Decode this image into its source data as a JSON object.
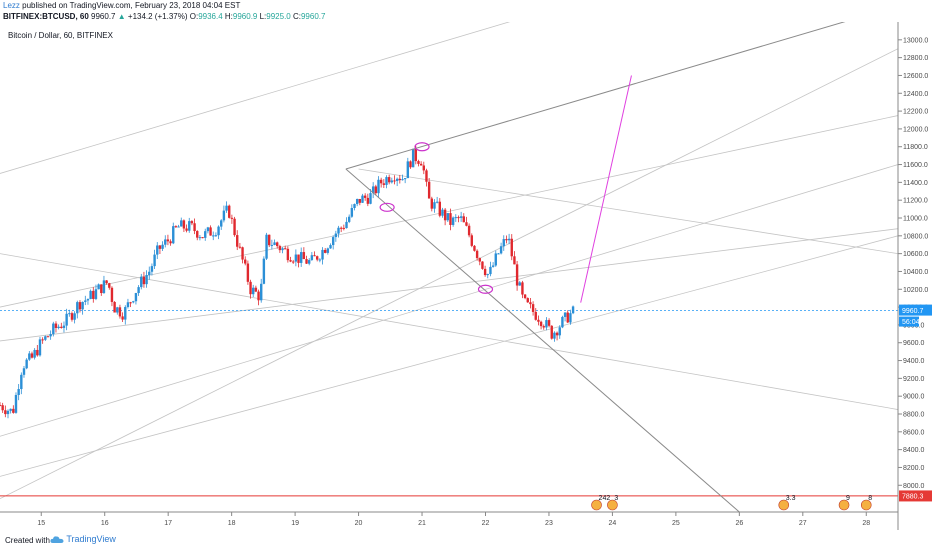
{
  "header": {
    "author": "Lezz",
    "published": "published on TradingView.com, February 23, 2018 04:04 EST",
    "symbol": "BITFINEX:BTCUSD, 60",
    "price": "9960.7",
    "arrow": "▲",
    "change": "+134.2 (+1.37%)",
    "open_label": "O:",
    "open": "9936.4",
    "high_label": "H:",
    "high": "9960.9",
    "low_label": "L:",
    "low": "9925.0",
    "close_label": "C:",
    "close": "9960.7"
  },
  "footer": {
    "created_with": "Created with",
    "logo_text": "TradingView",
    "logo_icon": "tradingview-cloud-icon"
  },
  "chart_data": {
    "type": "candlestick",
    "title": "Bitcoin / Dollar, 60, BITFINEX",
    "xlabel": "",
    "ylabel": "",
    "x_ticks": [
      "15",
      "16",
      "17",
      "18",
      "19",
      "20",
      "21",
      "22",
      "23",
      "24",
      "25",
      "26",
      "27",
      "28"
    ],
    "x_tick_values": [
      15,
      16,
      17,
      18,
      19,
      20,
      21,
      22,
      23,
      24,
      25,
      26,
      27,
      28
    ],
    "xlim": [
      14.35,
      28.5
    ],
    "ylim": [
      7700,
      13200
    ],
    "y_ticks": [
      "13000.0",
      "12800.0",
      "12600.0",
      "12400.0",
      "12200.0",
      "12000.0",
      "11800.0",
      "11600.0",
      "11400.0",
      "11200.0",
      "11000.0",
      "10800.0",
      "10600.0",
      "10400.0",
      "10200.0",
      "10000.0",
      "9800.0",
      "9600.0",
      "9400.0",
      "9200.0",
      "9000.0",
      "8800.0",
      "8600.0",
      "8400.0",
      "8200.0",
      "8000.0"
    ],
    "y_tick_values": [
      13000,
      12800,
      12600,
      12400,
      12200,
      12000,
      11800,
      11600,
      11400,
      11200,
      11000,
      10800,
      10600,
      10400,
      10200,
      10000,
      9800,
      9600,
      9400,
      9200,
      9000,
      8800,
      8600,
      8400,
      8200,
      8000
    ],
    "price_label": "9960.7",
    "countdown_label": "56:04",
    "red_line_label": "7880.3",
    "red_line_value": 7880.3,
    "current_price": 9960.7,
    "colors": {
      "up": "#2b8fd6",
      "down": "#e0282e",
      "trendline": "#9a9a9a",
      "fan": "#c4c4c4",
      "projection": "#e040e0",
      "price_line": "#2196f3",
      "red_line": "#e53935",
      "marker": "#cc33cc"
    },
    "candles_path": [
      [
        14.35,
        8900
      ],
      [
        14.55,
        8820
      ],
      [
        14.7,
        9350
      ],
      [
        14.85,
        9420
      ],
      [
        15.0,
        9600
      ],
      [
        15.2,
        9750
      ],
      [
        15.4,
        9850
      ],
      [
        15.6,
        10050
      ],
      [
        15.75,
        10100
      ],
      [
        15.9,
        10200
      ],
      [
        16.05,
        10280
      ],
      [
        16.15,
        10000
      ],
      [
        16.3,
        9930
      ],
      [
        16.5,
        10200
      ],
      [
        16.7,
        10400
      ],
      [
        16.85,
        10650
      ],
      [
        17.0,
        10750
      ],
      [
        17.15,
        10900
      ],
      [
        17.35,
        10900
      ],
      [
        17.55,
        10800
      ],
      [
        17.75,
        10880
      ],
      [
        17.95,
        11100
      ],
      [
        18.1,
        10700
      ],
      [
        18.3,
        10200
      ],
      [
        18.45,
        10120
      ],
      [
        18.55,
        10750
      ],
      [
        18.7,
        10700
      ],
      [
        18.9,
        10600
      ],
      [
        19.05,
        10550
      ],
      [
        19.25,
        10500
      ],
      [
        19.45,
        10650
      ],
      [
        19.6,
        10800
      ],
      [
        19.8,
        10950
      ],
      [
        20.0,
        11200
      ],
      [
        20.2,
        11250
      ],
      [
        20.35,
        11400
      ],
      [
        20.55,
        11500
      ],
      [
        20.7,
        11450
      ],
      [
        20.85,
        11700
      ],
      [
        21.0,
        11650
      ],
      [
        21.1,
        11200
      ],
      [
        21.25,
        11100
      ],
      [
        21.45,
        10950
      ],
      [
        21.6,
        11000
      ],
      [
        21.75,
        10800
      ],
      [
        21.9,
        10550
      ],
      [
        22.05,
        10350
      ],
      [
        22.2,
        10600
      ],
      [
        22.35,
        10800
      ],
      [
        22.5,
        10300
      ],
      [
        22.6,
        10050
      ],
      [
        22.75,
        9950
      ],
      [
        22.9,
        9850
      ],
      [
        23.05,
        9700
      ],
      [
        23.15,
        9780
      ],
      [
        23.3,
        9900
      ],
      [
        23.42,
        9960
      ]
    ],
    "trendlines": [
      {
        "name": "upper-wedge",
        "from": [
          19.8,
          11550
        ],
        "to": [
          28.5,
          13380
        ]
      },
      {
        "name": "lower-wedge",
        "from": [
          19.8,
          11550
        ],
        "to": [
          26.0,
          7700
        ]
      },
      {
        "name": "projection",
        "from": [
          23.5,
          10050
        ],
        "to": [
          24.3,
          12600
        ]
      }
    ],
    "fan_lines": [
      {
        "from": [
          14.35,
          9620
        ],
        "to": [
          28.5,
          10880
        ]
      },
      {
        "from": [
          14.35,
          8550
        ],
        "to": [
          28.5,
          11600
        ]
      },
      {
        "from": [
          14.35,
          8100
        ],
        "to": [
          28.5,
          10800
        ]
      },
      {
        "from": [
          14.35,
          10600
        ],
        "to": [
          28.5,
          8850
        ]
      },
      {
        "from": [
          14.35,
          10000
        ],
        "to": [
          28.5,
          12150
        ]
      },
      {
        "from": [
          14.35,
          7850
        ],
        "to": [
          28.5,
          12900
        ]
      },
      {
        "from": [
          14.35,
          11500
        ],
        "to": [
          28.5,
          14500
        ]
      },
      {
        "from": [
          20.0,
          11550
        ],
        "to": [
          28.5,
          10600
        ]
      }
    ],
    "ellipses": [
      {
        "center": [
          21.0,
          11800
        ]
      },
      {
        "center": [
          20.45,
          11120
        ]
      },
      {
        "center": [
          22.0,
          10200
        ]
      }
    ],
    "event_badges": [
      {
        "x": 23.75,
        "label": "242"
      },
      {
        "x": 24.0,
        "label": "3"
      },
      {
        "x": 26.7,
        "label": "3.3"
      },
      {
        "x": 27.65,
        "label": "9"
      },
      {
        "x": 28.0,
        "label": "8"
      }
    ]
  }
}
